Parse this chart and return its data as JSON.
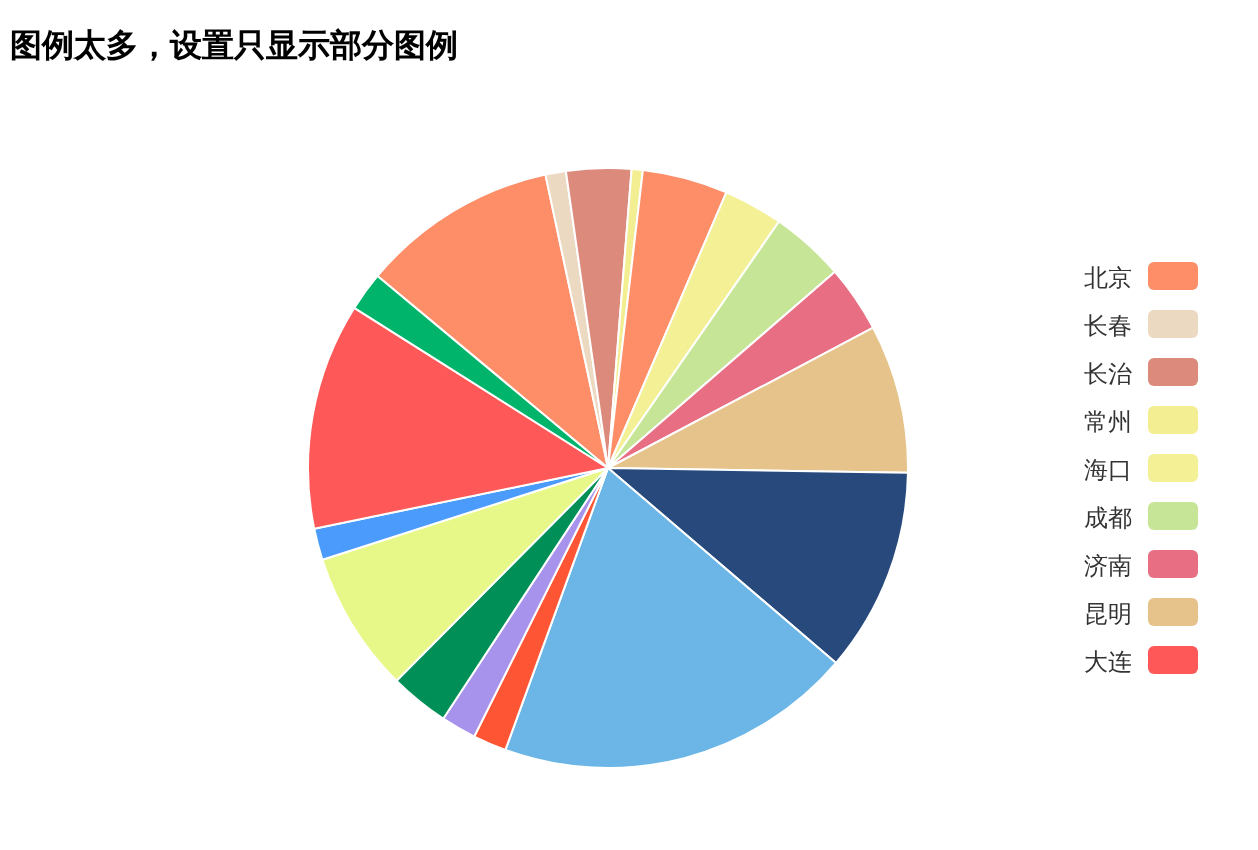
{
  "chart_data": {
    "type": "pie",
    "title": "图例太多，设置只显示部分图例",
    "legend": "right",
    "categories": [
      "北京",
      "长春",
      "长治",
      "常州",
      null,
      "海口",
      "成都",
      "济南",
      "昆明",
      null,
      null,
      null,
      null,
      null,
      null,
      null,
      "大连",
      null
    ],
    "values": [
      10.6,
      1.1,
      3.5,
      0.6,
      4.6,
      3.2,
      4.0,
      3.6,
      8.0,
      11.0,
      19.3,
      1.8,
      1.9,
      3.2,
      7.6,
      1.7,
      12.2,
      2.1
    ],
    "colors": [
      "#fd8e67",
      "#ecd9c1",
      "#dc8a7b",
      "#f3ee91",
      "#fd8e67",
      "#f3f096",
      "#c7e597",
      "#e76e83",
      "#e5c38a",
      "#27497c",
      "#6bb6e6",
      "#fe5634",
      "#a793ec",
      "#008f57",
      "#e8f888",
      "#4a9bfb",
      "#fe5858",
      "#00b56b"
    ]
  }
}
